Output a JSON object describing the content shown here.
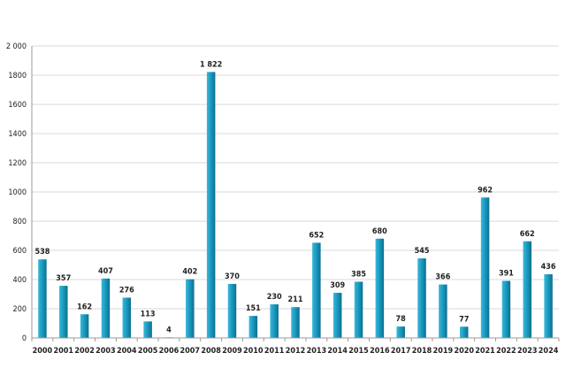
{
  "chart_data": {
    "type": "bar",
    "categories": [
      "2000",
      "2001",
      "2002",
      "2003",
      "2004",
      "2005",
      "2006",
      "2007",
      "2008",
      "2009",
      "2010",
      "2011",
      "2012",
      "2013",
      "2014",
      "2015",
      "2016",
      "2017",
      "2018",
      "2019",
      "2020",
      "2021",
      "2022",
      "2023",
      "2024"
    ],
    "values": [
      538,
      357,
      162,
      407,
      276,
      113,
      4,
      402,
      1822,
      370,
      151,
      230,
      211,
      652,
      309,
      385,
      680,
      78,
      545,
      366,
      77,
      962,
      391,
      662,
      436
    ],
    "data_labels": [
      "538",
      "357",
      "162",
      "407",
      "276",
      "113",
      "4",
      "402",
      "1 822",
      "370",
      "151",
      "230",
      "211",
      "652",
      "309",
      "385",
      "680",
      "78",
      "545",
      "366",
      "77",
      "962",
      "391",
      "662",
      "436"
    ],
    "y_ticks": [
      0,
      200,
      400,
      600,
      800,
      1000,
      1200,
      1400,
      1600,
      1800,
      2000
    ],
    "y_tick_labels": [
      "0",
      "200",
      "400",
      "600",
      "800",
      "1000",
      "1200",
      "1400",
      "1600",
      "1800",
      "2 000"
    ],
    "ylim": [
      0,
      2000
    ],
    "title": "",
    "xlabel": "",
    "ylabel": "",
    "grid": true,
    "legend": "none",
    "colors": {
      "bar_light": "#3ab8d8",
      "bar_mid": "#1a9cc2",
      "bar_dark": "#0e6f8e",
      "grid": "#d9d9d9",
      "axis": "#9a9a9a"
    }
  }
}
